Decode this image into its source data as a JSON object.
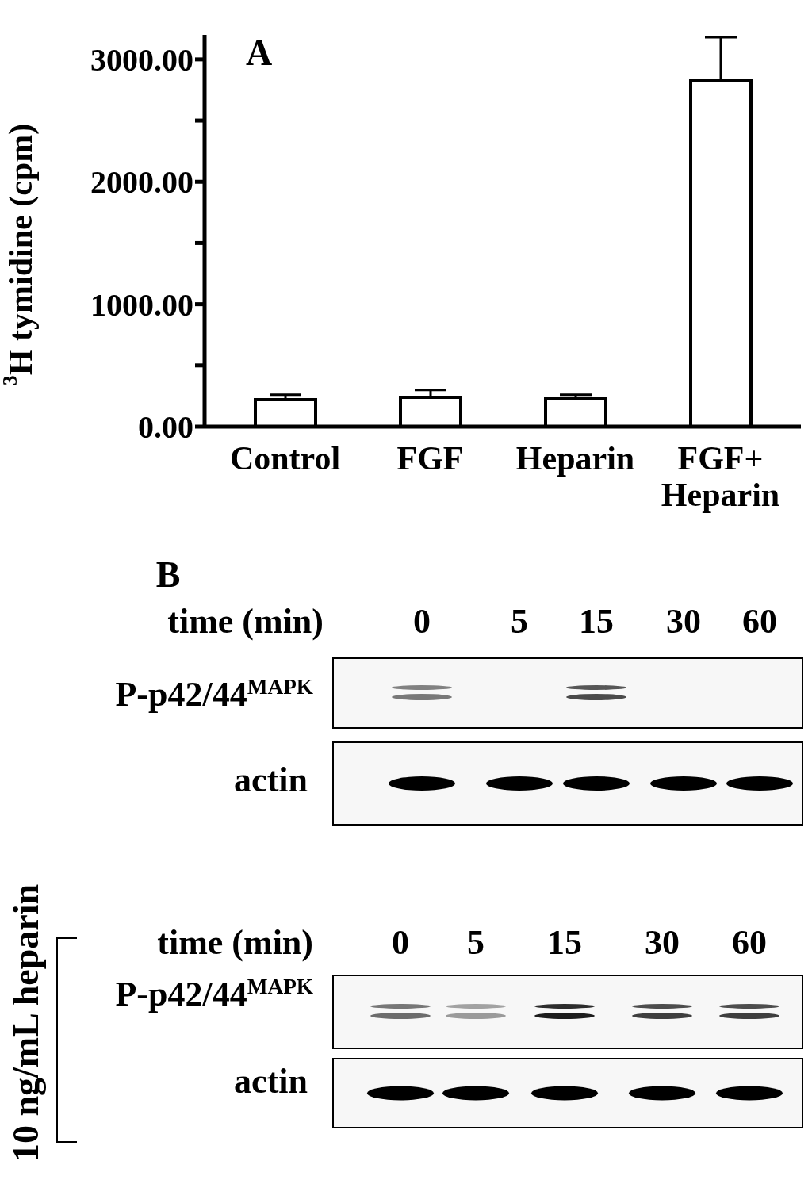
{
  "chart_data": [
    {
      "type": "bar",
      "ylabel": "$^{3}$H tymidine (cpm)",
      "categories": [
        "Control",
        "FGF",
        "Heparin",
        "FGF+ Heparin"
      ],
      "values": [
        220,
        240,
        230,
        2830
      ],
      "errors": [
        [
          220,
          260
        ],
        [
          240,
          300
        ],
        [
          230,
          260
        ],
        [
          2830,
          3180
        ]
      ],
      "color": "#ffffff",
      "ylim": [
        0,
        3200
      ],
      "yticks": [
        {
          "value": 0,
          "label": "0.00"
        },
        {
          "value": 500,
          "label": null
        },
        {
          "value": 1000,
          "label": "1000.00"
        },
        {
          "value": 1500,
          "label": null
        },
        {
          "value": 2000,
          "label": "2000.00"
        },
        {
          "value": 2500,
          "label": null
        },
        {
          "value": 3000,
          "label": "3000.00"
        }
      ],
      "annotations": [
        "A"
      ]
    },
    {
      "type": "other",
      "title": "B",
      "annotations": [
        "time (min)",
        "0",
        "5",
        "15",
        "30",
        "60",
        "P-p42/44$^{MAPK}$",
        "actin"
      ]
    },
    {
      "type": "other",
      "ylabel": "10 ng/mL heparin",
      "annotations": [
        "time (min)",
        "0",
        "5",
        "15",
        "30",
        "60",
        "P-p42/44$^{MAPK}$",
        "actin"
      ]
    }
  ]
}
